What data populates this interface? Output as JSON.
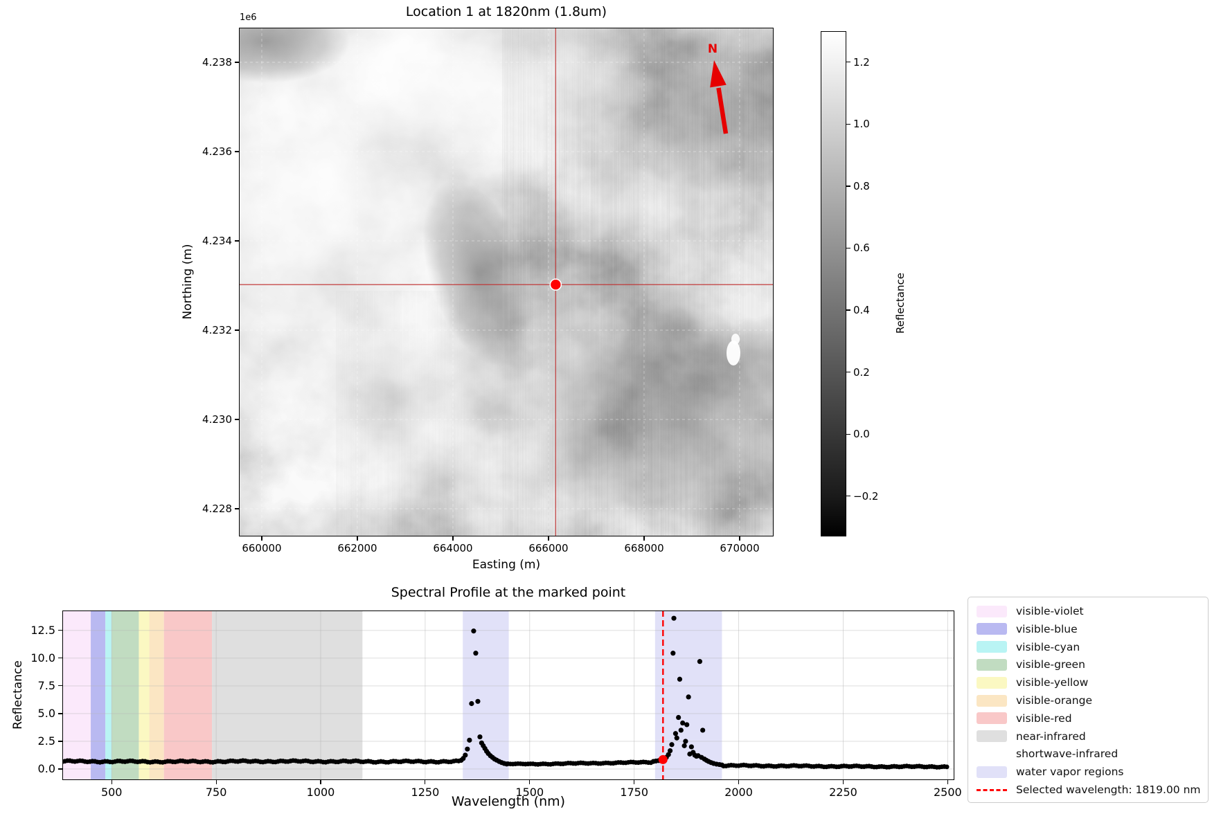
{
  "figure": {
    "background": "#ffffff"
  },
  "map_panel": {
    "title": "Location 1 at 1820nm (1.8um)",
    "axis_offset_label": "1e6",
    "xlabel": "Easting (m)",
    "ylabel": "Northing (m)",
    "xtick_labels": [
      "660000",
      "662000",
      "664000",
      "666000",
      "668000",
      "670000"
    ],
    "xtick_values": [
      660000,
      662000,
      664000,
      666000,
      668000,
      670000
    ],
    "ytick_labels": [
      "4.238",
      "4.236",
      "4.234",
      "4.232",
      "4.230",
      "4.228"
    ],
    "ytick_values": [
      4238000,
      4236000,
      4234000,
      4232000,
      4230000,
      4228000
    ],
    "xlim": [
      659522,
      670710
    ],
    "ylim": [
      4227380,
      4238775
    ],
    "north_arrow_label": "N",
    "north_arrow_color": "#e60000",
    "crosshair_color": "#c03030",
    "marker": {
      "easting": 666150,
      "northing": 4233020,
      "color": "#ff0000"
    },
    "colorbar": {
      "label": "Reflectance",
      "tick_labels": [
        "1.2",
        "1.0",
        "0.8",
        "0.6",
        "0.4",
        "0.2",
        "0.0",
        "−0.2"
      ],
      "tick_values": [
        1.2,
        1.0,
        0.8,
        0.6,
        0.4,
        0.2,
        0.0,
        -0.2
      ],
      "vmin": -0.33,
      "vmax": 1.3
    }
  },
  "spectral_panel": {
    "title": "Spectral Profile at the marked point",
    "xlabel": "Wavelength (nm)",
    "ylabel": "Reflectance",
    "xtick_labels": [
      "500",
      "750",
      "1000",
      "1250",
      "1500",
      "1750",
      "2000",
      "2250",
      "2500"
    ],
    "xtick_values": [
      500,
      750,
      1000,
      1250,
      1500,
      1750,
      2000,
      2250,
      2500
    ],
    "ytick_labels": [
      "0.0",
      "2.5",
      "5.0",
      "7.5",
      "10.0",
      "12.5"
    ],
    "ytick_values": [
      0,
      2.5,
      5,
      7.5,
      10,
      12.5
    ],
    "grid_color": "rgba(180,180,180,0.5)",
    "point_color": "#000000",
    "selected_line_color": "#ff0000",
    "legend": {
      "items": [
        {
          "label": "visible-violet",
          "color": "#fbe9fb",
          "type": "patch"
        },
        {
          "label": "visible-blue",
          "color": "#b9b9f1",
          "type": "patch"
        },
        {
          "label": "visible-cyan",
          "color": "#b9f4f4",
          "type": "patch"
        },
        {
          "label": "visible-green",
          "color": "#c1dcc1",
          "type": "patch"
        },
        {
          "label": "visible-yellow",
          "color": "#fbf8c2",
          "type": "patch"
        },
        {
          "label": "visible-orange",
          "color": "#fbe6c3",
          "type": "patch"
        },
        {
          "label": "visible-red",
          "color": "#f9c8c8",
          "type": "patch"
        },
        {
          "label": "near-infrared",
          "color": "#dfdfdf",
          "type": "patch"
        },
        {
          "label": "shortwave-infrared",
          "color": "#ffffff",
          "type": "patch"
        },
        {
          "label": "water vapor regions",
          "color": "#e1e1f8",
          "type": "patch"
        },
        {
          "label": "Selected wavelength: 1819.00 nm",
          "color": "#ff0000",
          "type": "dashed-line"
        }
      ]
    }
  },
  "chart_data": [
    {
      "type": "heatmap",
      "title": "Location 1 at 1820nm (1.8um)",
      "xlabel": "Easting (m)",
      "ylabel": "Northing (m)",
      "x_range_m": [
        659522,
        670710
      ],
      "y_range_m": [
        4227380,
        4238775
      ],
      "xticks": [
        660000,
        662000,
        664000,
        666000,
        668000,
        670000
      ],
      "yticks": [
        4238000,
        4236000,
        4234000,
        4232000,
        4230000,
        4228000
      ],
      "colorbar": {
        "label": "Reflectance",
        "range": [
          -0.33,
          1.3
        ],
        "ticks": [
          -0.2,
          0.0,
          0.2,
          0.4,
          0.6,
          0.8,
          1.0,
          1.2
        ]
      },
      "marked_point": {
        "easting_m": 666150,
        "northing_m": 4233020
      },
      "description": "Grayscale reflectance image at 1820 nm; red crosshair through the marked point; red north arrow labeled N at upper right; white dashed gridlines at axis ticks."
    },
    {
      "type": "scatter",
      "title": "Spectral Profile at the marked point",
      "xlabel": "Wavelength (nm)",
      "ylabel": "Reflectance",
      "xlim": [
        382,
        2516
      ],
      "ylim": [
        -1.0,
        14.3
      ],
      "grid": true,
      "legend_position": "outside upper right",
      "selected_wavelength_nm": 1819.0,
      "selected_point": {
        "x": 1819,
        "y": 0.85
      },
      "bands": [
        {
          "name": "visible-violet",
          "from": 380,
          "to": 450,
          "color": "#fbe9fb"
        },
        {
          "name": "visible-blue",
          "from": 450,
          "to": 485,
          "color": "#b9b9f1"
        },
        {
          "name": "visible-cyan",
          "from": 485,
          "to": 500,
          "color": "#b9f4f4"
        },
        {
          "name": "visible-green",
          "from": 500,
          "to": 565,
          "color": "#c1dcc1"
        },
        {
          "name": "visible-yellow",
          "from": 565,
          "to": 590,
          "color": "#fbf8c2"
        },
        {
          "name": "visible-orange",
          "from": 590,
          "to": 625,
          "color": "#fbe6c3"
        },
        {
          "name": "visible-red",
          "from": 625,
          "to": 740,
          "color": "#f9c8c8"
        },
        {
          "name": "near-infrared",
          "from": 740,
          "to": 1100,
          "color": "#dfdfdf"
        },
        {
          "name": "shortwave-infrared",
          "from": 1100,
          "to": 2500,
          "color": "none"
        },
        {
          "name": "water-vapor-region-1",
          "from": 1340,
          "to": 1450,
          "color": "#e1e1f8"
        },
        {
          "name": "water-vapor-region-2",
          "from": 1800,
          "to": 1960,
          "color": "#e1e1f8"
        }
      ],
      "baseline_segments": [
        {
          "from": 382,
          "to": 1334,
          "step": 6,
          "base": 0.68,
          "base_end": 0.68,
          "amp": 0.09
        },
        {
          "from": 1448,
          "to": 1502,
          "step": 6,
          "base": 0.45,
          "base_end": 0.44,
          "amp": 0.04
        },
        {
          "from": 1508,
          "to": 1790,
          "step": 6,
          "base": 0.44,
          "base_end": 0.62,
          "amp": 0.06
        },
        {
          "from": 1964,
          "to": 2500,
          "step": 6,
          "base": 0.3,
          "base_end": 0.2,
          "amp": 0.07
        }
      ],
      "spike_points": [
        [
          1336,
          0.78
        ],
        [
          1341,
          0.95
        ],
        [
          1346,
          1.25
        ],
        [
          1351,
          1.8
        ],
        [
          1356,
          2.6
        ],
        [
          1361,
          5.9
        ],
        [
          1366,
          12.45
        ],
        [
          1371,
          10.45
        ],
        [
          1376,
          6.1
        ],
        [
          1381,
          2.9
        ],
        [
          1385,
          2.35
        ],
        [
          1389,
          2.1
        ],
        [
          1393,
          1.85
        ],
        [
          1397,
          1.6
        ],
        [
          1401,
          1.4
        ],
        [
          1406,
          1.2
        ],
        [
          1411,
          1.05
        ],
        [
          1416,
          0.9
        ],
        [
          1421,
          0.8
        ],
        [
          1427,
          0.68
        ],
        [
          1433,
          0.58
        ],
        [
          1439,
          0.5
        ],
        [
          1445,
          0.45
        ],
        [
          1796,
          0.68
        ],
        [
          1802,
          0.72
        ],
        [
          1809,
          0.76
        ],
        [
          1816,
          0.8
        ],
        [
          1822,
          0.95
        ],
        [
          1827,
          1.05
        ],
        [
          1832,
          1.3
        ],
        [
          1836,
          1.65
        ],
        [
          1840,
          2.2
        ],
        [
          1843,
          10.45
        ],
        [
          1845,
          13.6
        ],
        [
          1849,
          3.2
        ],
        [
          1852,
          2.8
        ],
        [
          1856,
          4.65
        ],
        [
          1859,
          8.1
        ],
        [
          1862,
          3.5
        ],
        [
          1866,
          4.15
        ],
        [
          1870,
          2.1
        ],
        [
          1873,
          2.5
        ],
        [
          1876,
          4.0
        ],
        [
          1880,
          6.5
        ],
        [
          1883,
          1.35
        ],
        [
          1887,
          2.0
        ],
        [
          1891,
          1.5
        ],
        [
          1895,
          1.25
        ],
        [
          1899,
          1.15
        ],
        [
          1903,
          1.2
        ],
        [
          1907,
          9.7
        ],
        [
          1911,
          1.05
        ],
        [
          1914,
          3.5
        ],
        [
          1918,
          0.9
        ],
        [
          1923,
          0.78
        ],
        [
          1928,
          0.68
        ],
        [
          1934,
          0.58
        ],
        [
          1940,
          0.5
        ],
        [
          1947,
          0.44
        ],
        [
          1954,
          0.4
        ],
        [
          1960,
          0.36
        ]
      ]
    }
  ]
}
